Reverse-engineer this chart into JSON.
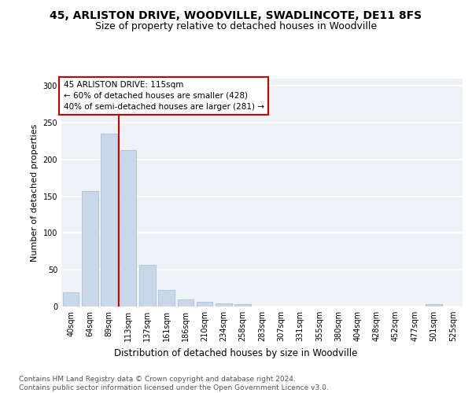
{
  "title": "45, ARLISTON DRIVE, WOODVILLE, SWADLINCOTE, DE11 8FS",
  "subtitle": "Size of property relative to detached houses in Woodville",
  "xlabel": "Distribution of detached houses by size in Woodville",
  "ylabel": "Number of detached properties",
  "categories": [
    "40sqm",
    "64sqm",
    "89sqm",
    "113sqm",
    "137sqm",
    "161sqm",
    "186sqm",
    "210sqm",
    "234sqm",
    "258sqm",
    "283sqm",
    "307sqm",
    "331sqm",
    "355sqm",
    "380sqm",
    "404sqm",
    "428sqm",
    "452sqm",
    "477sqm",
    "501sqm",
    "525sqm"
  ],
  "values": [
    19,
    157,
    235,
    213,
    57,
    22,
    10,
    6,
    4,
    3,
    0,
    0,
    0,
    0,
    0,
    0,
    0,
    0,
    0,
    3,
    0
  ],
  "bar_color": "#c8d8e8",
  "bar_edge_color": "#a0b8cc",
  "ylim": [
    0,
    310
  ],
  "yticks": [
    0,
    50,
    100,
    150,
    200,
    250,
    300
  ],
  "red_line_index": 2.5,
  "red_line_color": "#cc0000",
  "annotation_text": "45 ARLISTON DRIVE: 115sqm\n← 60% of detached houses are smaller (428)\n40% of semi-detached houses are larger (281) →",
  "annotation_box_color": "#ffffff",
  "annotation_box_edge_color": "#cc0000",
  "bg_color": "#eef2f7",
  "grid_color": "#ffffff",
  "footer_text": "Contains HM Land Registry data © Crown copyright and database right 2024.\nContains public sector information licensed under the Open Government Licence v3.0.",
  "title_fontsize": 10,
  "subtitle_fontsize": 9,
  "xlabel_fontsize": 8.5,
  "ylabel_fontsize": 8,
  "tick_fontsize": 7,
  "footer_fontsize": 6.5,
  "annotation_fontsize": 7.5
}
